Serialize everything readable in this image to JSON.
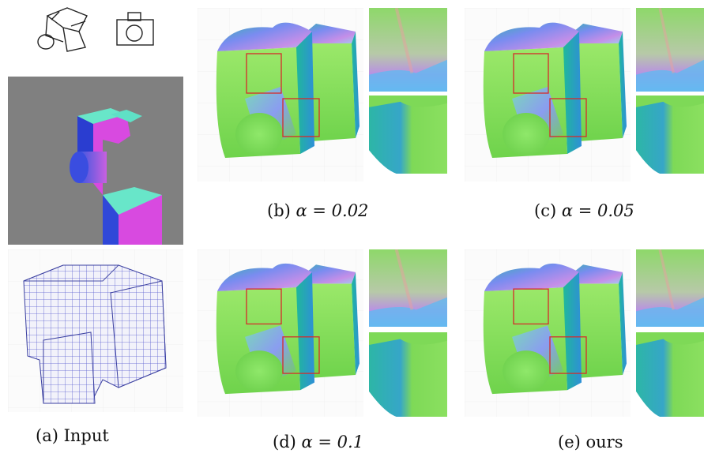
{
  "figure": {
    "captions": {
      "a": "(a) Input",
      "b_prefix": "(b)",
      "b_expr": "α = 0.02",
      "c_prefix": "(c)",
      "c_expr": "α = 0.05",
      "d_prefix": "(d)",
      "d_expr": "α = 0.1",
      "e": "(e) ours"
    },
    "colors": {
      "background_gray": "#808080",
      "normal_green": "#7ed957",
      "normal_blue": "#4a7bd6",
      "normal_magenta": "#d45be0",
      "normal_cyan": "#6ee6c8",
      "highlight_box": "#d62a2a",
      "voxel_line": "#5a5fd0"
    },
    "icons": [
      "camera-sketch-perspective-icon",
      "camera-sketch-front-icon"
    ]
  }
}
